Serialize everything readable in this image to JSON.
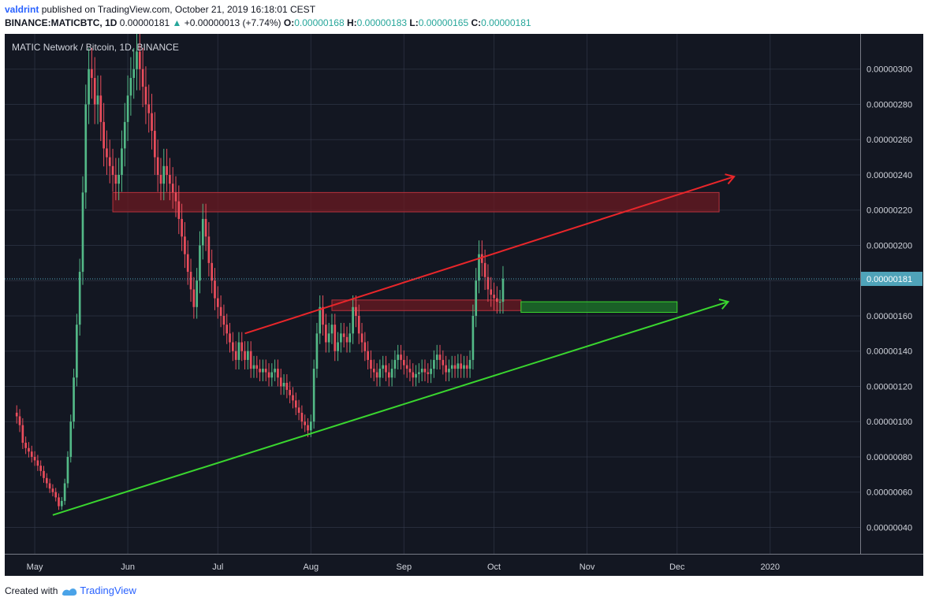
{
  "header": {
    "user": "valdrint",
    "published_text": "published on TradingView.com, October 21, 2019 16:18:01 CEST",
    "symbol": "BINANCE:MATICBTC, 1D",
    "price": "0.00000181",
    "change_arrow": "▲",
    "change": "+0.00000013 (+7.74%)",
    "open_label": "O:",
    "open": "0.00000168",
    "high_label": "H:",
    "high": "0.00000183",
    "low_label": "L:",
    "low": "0.00000165",
    "close_label": "C:",
    "close": "0.00000181"
  },
  "footer": {
    "created_with": "Created with",
    "brand": "TradingView"
  },
  "colors": {
    "background": "#131722",
    "grid": "#363c4e",
    "up": "#53b987",
    "down": "#eb4d5c",
    "resistance_line": "#e8262a",
    "support_line": "#3ad62f",
    "resistance_zone": "#6b1a21",
    "support_zone": "#1e7a2a",
    "price_line": "#4fa3b9",
    "price_label_bg": "#4fa3b9"
  },
  "chart_data": {
    "type": "candlestick",
    "title": "MATIC Network / Bitcoin, 1D, BINANCE",
    "xlabel": "",
    "ylabel": "",
    "x_ticks": [
      "May",
      "Jun",
      "Jul",
      "Aug",
      "Sep",
      "Oct",
      "Nov",
      "Dec",
      "2020"
    ],
    "y_ticks": [
      "0.00000040",
      "0.00000060",
      "0.00000080",
      "0.00000100",
      "0.00000120",
      "0.00000140",
      "0.00000160",
      "0.00000180",
      "0.00000200",
      "0.00000220",
      "0.00000240",
      "0.00000260",
      "0.00000280",
      "0.00000300"
    ],
    "ylim": [
      2.5e-07,
      3.2e-06
    ],
    "xlim": [
      "2019-04-21",
      "2020-01-31"
    ],
    "grid": true,
    "last_price": "0.00000181",
    "close_series": {
      "start_date": "2019-04-25",
      "interval": "1D",
      "close": [
        1.03e-06,
        9.8e-07,
        8.8e-07,
        8.5e-07,
        8.3e-07,
        8e-07,
        7.8e-07,
        7.5e-07,
        7.2e-07,
        6.8e-07,
        6.5e-07,
        6.2e-07,
        6e-07,
        5.7e-07,
        5.2e-07,
        5.5e-07,
        6.5e-07,
        8e-07,
        1e-06,
        1.25e-06,
        1.55e-06,
        1.85e-06,
        2.3e-06,
        2.8e-06,
        3e-06,
        2.95e-06,
        2.8e-06,
        2.85e-06,
        2.7e-06,
        2.55e-06,
        2.5e-06,
        2.45e-06,
        2.4e-06,
        2.35e-06,
        2.4e-06,
        2.55e-06,
        2.7e-06,
        2.85e-06,
        2.95e-06,
        3e-06,
        3.1e-06,
        3e-06,
        2.9e-06,
        2.8e-06,
        2.75e-06,
        2.65e-06,
        2.5e-06,
        2.4e-06,
        2.35e-06,
        2.45e-06,
        2.4e-06,
        2.35e-06,
        2.3e-06,
        2.25e-06,
        2.15e-06,
        2.05e-06,
        1.95e-06,
        1.85e-06,
        1.75e-06,
        1.65e-06,
        1.8e-06,
        2e-06,
        2.15e-06,
        2.05e-06,
        1.9e-06,
        1.8e-06,
        1.7e-06,
        1.65e-06,
        1.6e-06,
        1.55e-06,
        1.5e-06,
        1.45e-06,
        1.4e-06,
        1.35e-06,
        1.45e-06,
        1.4e-06,
        1.35e-06,
        1.4e-06,
        1.3e-06,
        1.32e-06,
        1.3e-06,
        1.28e-06,
        1.3e-06,
        1.28e-06,
        1.25e-06,
        1.28e-06,
        1.3e-06,
        1.25e-06,
        1.2e-06,
        1.22e-06,
        1.18e-06,
        1.15e-06,
        1.12e-06,
        1.08e-06,
        1.05e-06,
        1e-06,
        9.8e-07,
        9.5e-07,
        1e-06,
        1.3e-06,
        1.5e-06,
        1.65e-06,
        1.55e-06,
        1.45e-06,
        1.5e-06,
        1.55e-06,
        1.4e-06,
        1.45e-06,
        1.5e-06,
        1.48e-06,
        1.45e-06,
        1.5e-06,
        1.65e-06,
        1.6e-06,
        1.5e-06,
        1.45e-06,
        1.4e-06,
        1.35e-06,
        1.3e-06,
        1.28e-06,
        1.25e-06,
        1.3e-06,
        1.32e-06,
        1.28e-06,
        1.25e-06,
        1.3e-06,
        1.35e-06,
        1.38e-06,
        1.35e-06,
        1.32e-06,
        1.3e-06,
        1.28e-06,
        1.25e-06,
        1.27e-06,
        1.28e-06,
        1.3e-06,
        1.28e-06,
        1.27e-06,
        1.3e-06,
        1.35e-06,
        1.38e-06,
        1.35e-06,
        1.32e-06,
        1.28e-06,
        1.3e-06,
        1.32e-06,
        1.3e-06,
        1.33e-06,
        1.3e-06,
        1.32e-06,
        1.3e-06,
        1.35e-06,
        1.6e-06,
        1.8e-06,
        1.95e-06,
        1.9e-06,
        1.82e-06,
        1.75e-06,
        1.72e-06,
        1.7e-06,
        1.68e-06,
        1.68e-06,
        1.81e-06
      ]
    },
    "annotations": [
      {
        "type": "trendline",
        "label": "resistance",
        "color": "#e8262a",
        "from": [
          "2019-07-10",
          1.5e-06
        ],
        "to": [
          "2019-12-20",
          2.39e-06
        ]
      },
      {
        "type": "trendline",
        "label": "support",
        "color": "#3ad62f",
        "from": [
          "2019-05-07",
          4.7e-07
        ],
        "to": [
          "2019-12-18",
          1.68e-06
        ]
      },
      {
        "type": "zone",
        "label": "resistance zone",
        "color": "#6b1a21",
        "x": [
          "2019-05-27",
          "2019-12-15"
        ],
        "y": [
          2.19e-06,
          2.3e-06
        ]
      },
      {
        "type": "zone",
        "label": "resistance zone",
        "color": "#6b1a21",
        "x": [
          "2019-08-08",
          "2019-10-10"
        ],
        "y": [
          1.63e-06,
          1.69e-06
        ]
      },
      {
        "type": "zone",
        "label": "support zone",
        "color": "#1e7a2a",
        "x": [
          "2019-10-10",
          "2019-12-01"
        ],
        "y": [
          1.62e-06,
          1.68e-06
        ]
      }
    ]
  }
}
